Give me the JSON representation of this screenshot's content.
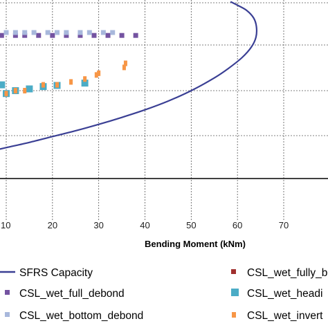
{
  "chart_data": {
    "type": "scatter",
    "title": "",
    "xlabel": "Bending Moment (kNm)",
    "ylabel": "",
    "xlim": [
      0,
      70
    ],
    "ylim": [
      -1,
      2.75
    ],
    "x_ticks": [
      10,
      20,
      30,
      40,
      50,
      60,
      70
    ],
    "grid": true,
    "legend_position": "bottom",
    "series": [
      {
        "name": "SFRS Capacity",
        "kind": "line",
        "color": "#3a3f94",
        "x": [
          0,
          5,
          10,
          15,
          20,
          25,
          30,
          35,
          40,
          45,
          50,
          55,
          58,
          61,
          63,
          64,
          64.1,
          63.5,
          62,
          60,
          58.5
        ],
        "y": [
          0.1,
          0.18,
          0.27,
          0.36,
          0.46,
          0.56,
          0.67,
          0.79,
          0.92,
          1.07,
          1.25,
          1.47,
          1.63,
          1.82,
          2.0,
          2.17,
          2.35,
          2.5,
          2.63,
          2.72,
          2.78
        ]
      },
      {
        "name": "CSL_wet_fully_bonded",
        "kind": "marker",
        "color": "#a0302e",
        "x": [],
        "y": []
      },
      {
        "name": "CSL_wet_full_debond",
        "kind": "marker",
        "color": "#7453a1",
        "x": [
          1,
          4,
          6,
          9,
          12,
          14,
          17,
          20,
          23,
          26,
          29,
          32,
          35,
          38
        ],
        "y": [
          2.2,
          2.2,
          2.2,
          2.2,
          2.2,
          2.2,
          2.2,
          2.2,
          2.2,
          2.2,
          2.2,
          2.2,
          2.2,
          2.2
        ]
      },
      {
        "name": "CSL_wet_headed",
        "kind": "marker",
        "color": "#4bacc6",
        "x": [
          1,
          2,
          4,
          6,
          7,
          9,
          10,
          12,
          15,
          18,
          21,
          27
        ],
        "y": [
          1.35,
          1.35,
          1.35,
          1.35,
          1.35,
          1.35,
          1.2,
          1.25,
          1.28,
          1.32,
          1.34,
          1.38
        ]
      },
      {
        "name": "CSL_wet_bottom_debond",
        "kind": "marker",
        "color": "#a8b8dc",
        "x": [
          2,
          5,
          7,
          8,
          10,
          12,
          14,
          16,
          19,
          21,
          23,
          26,
          28,
          31,
          33
        ],
        "y": [
          2.25,
          2.25,
          2.25,
          2.25,
          2.25,
          2.25,
          2.25,
          2.25,
          2.25,
          2.25,
          2.25,
          2.25,
          2.25,
          2.25,
          2.25
        ]
      },
      {
        "name": "CSL_wet_inverted",
        "kind": "marker",
        "color": "#f79646",
        "x": [
          10,
          12,
          14,
          18,
          21,
          24,
          27,
          29.5,
          30,
          35.5,
          35.8
        ],
        "y": [
          1.2,
          1.25,
          1.25,
          1.35,
          1.35,
          1.4,
          1.45,
          1.52,
          1.55,
          1.65,
          1.72
        ]
      }
    ]
  },
  "legend": {
    "sfrs_label": "SFRS Capacity",
    "wet_fully_label": "CSL_wet_fully_b",
    "full_debond_label": "CSL_wet_full_debond",
    "headed_label": "CSL_wet_headi",
    "bottom_debond_label": "CSL_wet_bottom_debond",
    "inverted_label": "CSL_wet_invert"
  }
}
